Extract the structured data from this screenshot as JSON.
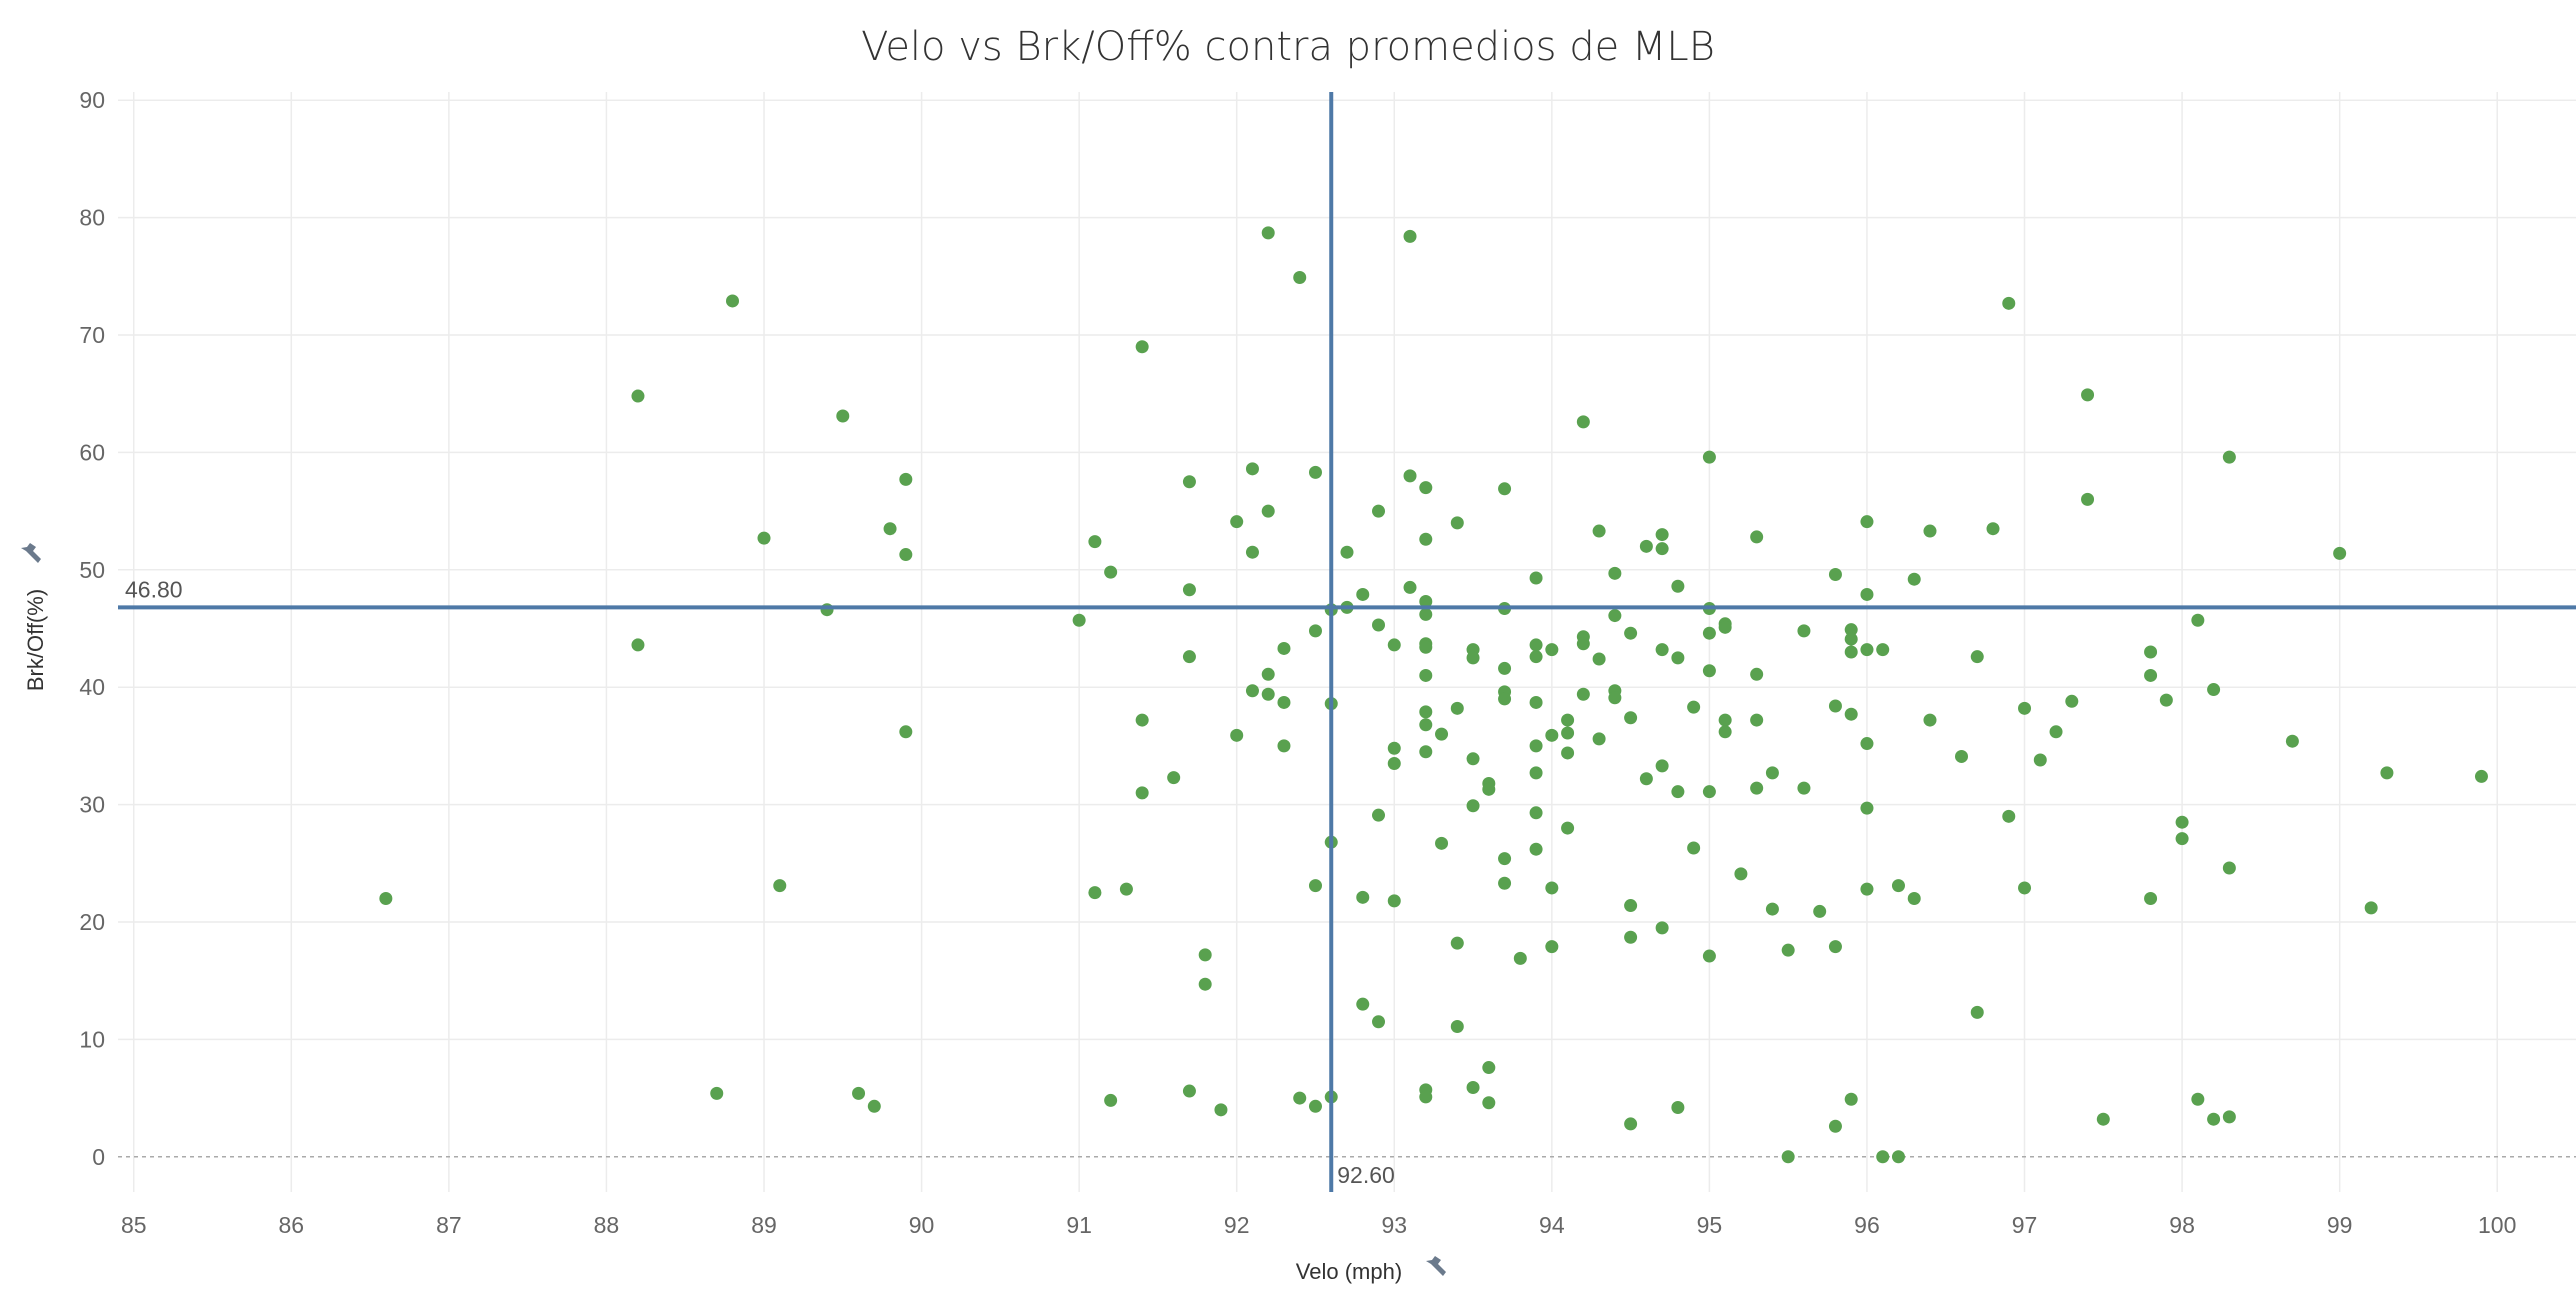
{
  "chart_data": {
    "type": "scatter",
    "title": "Velo vs Brk/Off% contra promedios de MLB",
    "xlabel": "Velo (mph)",
    "ylabel": "Brk/Off(%)",
    "xlim": [
      84.9,
      100.5
    ],
    "ylim": [
      -3,
      90.7
    ],
    "x_ticks": [
      85,
      86,
      87,
      88,
      89,
      90,
      91,
      92,
      93,
      94,
      95,
      96,
      97,
      98,
      99,
      100
    ],
    "y_ticks": [
      0,
      10,
      20,
      30,
      40,
      50,
      60,
      70,
      80,
      90
    ],
    "grid": true,
    "reference_lines": {
      "x": {
        "value": 92.6,
        "label": "92.60"
      },
      "y": {
        "value": 46.8,
        "label": "46.80"
      }
    },
    "marker_color": "#59a14f",
    "reference_line_color": "#4e79a7",
    "points": [
      [
        86.6,
        22.0
      ],
      [
        88.2,
        64.8
      ],
      [
        88.2,
        43.6
      ],
      [
        88.7,
        5.4
      ],
      [
        88.8,
        72.9
      ],
      [
        89.0,
        52.7
      ],
      [
        89.1,
        23.1
      ],
      [
        89.4,
        46.6
      ],
      [
        89.5,
        63.1
      ],
      [
        89.6,
        5.4
      ],
      [
        89.7,
        4.3
      ],
      [
        89.8,
        53.5
      ],
      [
        89.9,
        57.7
      ],
      [
        89.9,
        51.3
      ],
      [
        89.9,
        36.2
      ],
      [
        91.0,
        45.7
      ],
      [
        91.1,
        52.4
      ],
      [
        91.1,
        22.5
      ],
      [
        91.2,
        49.8
      ],
      [
        91.2,
        4.8
      ],
      [
        91.3,
        22.8
      ],
      [
        91.4,
        69.0
      ],
      [
        91.4,
        37.2
      ],
      [
        91.4,
        31.0
      ],
      [
        91.6,
        32.3
      ],
      [
        91.7,
        57.5
      ],
      [
        91.7,
        48.3
      ],
      [
        91.7,
        42.6
      ],
      [
        91.7,
        5.6
      ],
      [
        91.8,
        17.2
      ],
      [
        91.8,
        14.7
      ],
      [
        91.9,
        4.0
      ],
      [
        92.0,
        54.1
      ],
      [
        92.0,
        35.9
      ],
      [
        92.1,
        58.6
      ],
      [
        92.1,
        51.5
      ],
      [
        92.1,
        39.7
      ],
      [
        92.2,
        78.7
      ],
      [
        92.2,
        55.0
      ],
      [
        92.2,
        41.1
      ],
      [
        92.2,
        39.4
      ],
      [
        92.3,
        43.3
      ],
      [
        92.3,
        38.7
      ],
      [
        92.3,
        35.0
      ],
      [
        92.4,
        74.9
      ],
      [
        92.4,
        5.0
      ],
      [
        92.5,
        58.3
      ],
      [
        92.5,
        44.8
      ],
      [
        92.5,
        23.1
      ],
      [
        92.5,
        4.3
      ],
      [
        92.6,
        46.6
      ],
      [
        92.6,
        38.6
      ],
      [
        92.6,
        26.8
      ],
      [
        92.6,
        5.1
      ],
      [
        92.7,
        51.5
      ],
      [
        92.7,
        46.8
      ],
      [
        92.8,
        47.9
      ],
      [
        92.8,
        22.1
      ],
      [
        92.8,
        13.0
      ],
      [
        92.9,
        55.0
      ],
      [
        92.9,
        45.3
      ],
      [
        92.9,
        29.1
      ],
      [
        92.9,
        11.5
      ],
      [
        93.0,
        43.6
      ],
      [
        93.0,
        34.8
      ],
      [
        93.0,
        33.5
      ],
      [
        93.0,
        21.8
      ],
      [
        93.1,
        78.4
      ],
      [
        93.1,
        58.0
      ],
      [
        93.1,
        48.5
      ],
      [
        93.2,
        57.0
      ],
      [
        93.2,
        52.6
      ],
      [
        93.2,
        47.3
      ],
      [
        93.2,
        46.2
      ],
      [
        93.2,
        43.7
      ],
      [
        93.2,
        43.4
      ],
      [
        93.2,
        41.0
      ],
      [
        93.2,
        37.9
      ],
      [
        93.2,
        36.8
      ],
      [
        93.2,
        34.5
      ],
      [
        93.2,
        5.7
      ],
      [
        93.2,
        5.1
      ],
      [
        93.3,
        36.0
      ],
      [
        93.3,
        26.7
      ],
      [
        93.4,
        54.0
      ],
      [
        93.4,
        38.2
      ],
      [
        93.4,
        18.2
      ],
      [
        93.4,
        11.1
      ],
      [
        93.5,
        43.2
      ],
      [
        93.5,
        42.5
      ],
      [
        93.5,
        33.9
      ],
      [
        93.5,
        29.9
      ],
      [
        93.5,
        5.9
      ],
      [
        93.6,
        31.8
      ],
      [
        93.6,
        31.3
      ],
      [
        93.6,
        7.6
      ],
      [
        93.6,
        4.6
      ],
      [
        93.7,
        56.9
      ],
      [
        93.7,
        46.7
      ],
      [
        93.7,
        41.6
      ],
      [
        93.7,
        39.6
      ],
      [
        93.7,
        39.0
      ],
      [
        93.7,
        25.4
      ],
      [
        93.7,
        23.3
      ],
      [
        93.8,
        16.9
      ],
      [
        93.9,
        49.3
      ],
      [
        93.9,
        43.6
      ],
      [
        93.9,
        42.6
      ],
      [
        93.9,
        38.7
      ],
      [
        93.9,
        35.0
      ],
      [
        93.9,
        32.7
      ],
      [
        93.9,
        29.3
      ],
      [
        93.9,
        26.2
      ],
      [
        94.0,
        43.2
      ],
      [
        94.0,
        35.9
      ],
      [
        94.0,
        22.9
      ],
      [
        94.0,
        17.9
      ],
      [
        94.1,
        37.2
      ],
      [
        94.1,
        36.1
      ],
      [
        94.1,
        34.4
      ],
      [
        94.1,
        28.0
      ],
      [
        94.2,
        62.6
      ],
      [
        94.2,
        44.3
      ],
      [
        94.2,
        43.7
      ],
      [
        94.2,
        39.4
      ],
      [
        94.3,
        53.3
      ],
      [
        94.3,
        42.4
      ],
      [
        94.3,
        35.6
      ],
      [
        94.4,
        49.7
      ],
      [
        94.4,
        46.1
      ],
      [
        94.4,
        39.7
      ],
      [
        94.4,
        39.1
      ],
      [
        94.5,
        44.6
      ],
      [
        94.5,
        37.4
      ],
      [
        94.5,
        21.4
      ],
      [
        94.5,
        18.7
      ],
      [
        94.5,
        2.8
      ],
      [
        94.6,
        52.0
      ],
      [
        94.6,
        32.2
      ],
      [
        94.7,
        53.0
      ],
      [
        94.7,
        51.8
      ],
      [
        94.7,
        43.2
      ],
      [
        94.7,
        33.3
      ],
      [
        94.7,
        19.5
      ],
      [
        94.8,
        48.6
      ],
      [
        94.8,
        42.5
      ],
      [
        94.8,
        31.1
      ],
      [
        94.8,
        4.2
      ],
      [
        94.9,
        38.3
      ],
      [
        94.9,
        26.3
      ],
      [
        95.0,
        59.6
      ],
      [
        95.0,
        46.7
      ],
      [
        95.0,
        44.6
      ],
      [
        95.0,
        41.4
      ],
      [
        95.0,
        31.1
      ],
      [
        95.0,
        17.1
      ],
      [
        95.1,
        45.4
      ],
      [
        95.1,
        45.1
      ],
      [
        95.1,
        37.2
      ],
      [
        95.1,
        36.2
      ],
      [
        95.2,
        24.1
      ],
      [
        95.3,
        52.8
      ],
      [
        95.3,
        41.1
      ],
      [
        95.3,
        37.2
      ],
      [
        95.3,
        31.4
      ],
      [
        95.4,
        32.7
      ],
      [
        95.4,
        21.1
      ],
      [
        95.5,
        17.6
      ],
      [
        95.5,
        0.0
      ],
      [
        95.6,
        44.8
      ],
      [
        95.6,
        31.4
      ],
      [
        95.7,
        20.9
      ],
      [
        95.8,
        49.6
      ],
      [
        95.8,
        38.4
      ],
      [
        95.8,
        17.9
      ],
      [
        95.8,
        2.6
      ],
      [
        95.9,
        44.9
      ],
      [
        95.9,
        44.1
      ],
      [
        95.9,
        43.0
      ],
      [
        95.9,
        37.7
      ],
      [
        95.9,
        4.9
      ],
      [
        96.0,
        54.1
      ],
      [
        96.0,
        47.9
      ],
      [
        96.0,
        43.2
      ],
      [
        96.0,
        35.2
      ],
      [
        96.0,
        29.7
      ],
      [
        96.0,
        22.8
      ],
      [
        96.1,
        43.2
      ],
      [
        96.1,
        0.0
      ],
      [
        96.2,
        23.1
      ],
      [
        96.2,
        0.0
      ],
      [
        96.3,
        49.2
      ],
      [
        96.3,
        22.0
      ],
      [
        96.4,
        53.3
      ],
      [
        96.4,
        37.2
      ],
      [
        96.6,
        34.1
      ],
      [
        96.7,
        42.6
      ],
      [
        96.7,
        12.3
      ],
      [
        96.8,
        53.5
      ],
      [
        96.9,
        72.7
      ],
      [
        96.9,
        29.0
      ],
      [
        97.0,
        38.2
      ],
      [
        97.0,
        22.9
      ],
      [
        97.1,
        33.8
      ],
      [
        97.2,
        36.2
      ],
      [
        97.3,
        38.8
      ],
      [
        97.4,
        64.9
      ],
      [
        97.4,
        56.0
      ],
      [
        97.5,
        3.2
      ],
      [
        97.8,
        43.0
      ],
      [
        97.8,
        41.0
      ],
      [
        97.8,
        22.0
      ],
      [
        97.9,
        38.9
      ],
      [
        98.0,
        28.5
      ],
      [
        98.0,
        27.1
      ],
      [
        98.1,
        45.7
      ],
      [
        98.1,
        4.9
      ],
      [
        98.2,
        39.8
      ],
      [
        98.2,
        3.2
      ],
      [
        98.3,
        59.6
      ],
      [
        98.3,
        24.6
      ],
      [
        98.3,
        3.4
      ],
      [
        98.7,
        35.4
      ],
      [
        99.0,
        51.4
      ],
      [
        99.2,
        21.2
      ],
      [
        99.3,
        32.7
      ],
      [
        99.9,
        32.4
      ]
    ]
  }
}
